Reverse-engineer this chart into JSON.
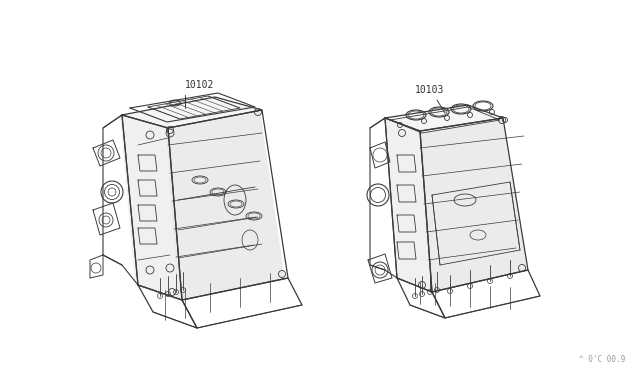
{
  "background_color": "#ffffff",
  "line_color": "#3a3a3a",
  "label_color": "#333333",
  "fig_width": 6.4,
  "fig_height": 3.72,
  "dpi": 100,
  "label1": "10102",
  "label2": "10103",
  "watermark": "^ 0’C 00·9"
}
